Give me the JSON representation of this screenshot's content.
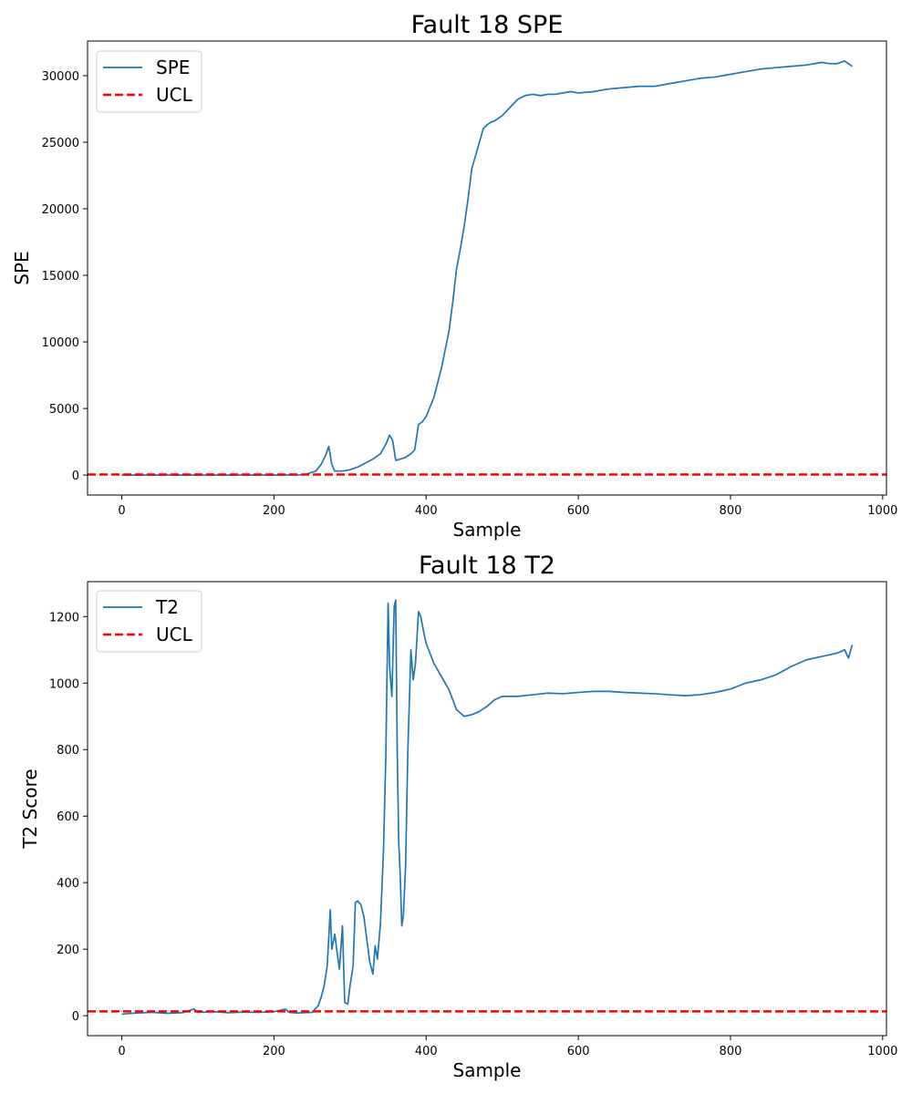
{
  "chart_data": [
    {
      "type": "line",
      "title": "Fault 18 SPE",
      "xlabel": "Sample",
      "ylabel": "SPE",
      "xlim": [
        -45,
        1005
      ],
      "ylim": [
        -1500,
        32600
      ],
      "xticks": [
        0,
        200,
        400,
        600,
        800,
        1000
      ],
      "yticks": [
        0,
        5000,
        10000,
        15000,
        20000,
        25000,
        30000
      ],
      "grid": false,
      "legend": "top-left",
      "series": [
        {
          "name": "SPE",
          "color": "#1f77b4",
          "style": "solid",
          "x": [
            0,
            50,
            100,
            150,
            200,
            240,
            255,
            262,
            268,
            272,
            276,
            280,
            290,
            300,
            310,
            320,
            330,
            340,
            347,
            352,
            356,
            360,
            366,
            372,
            380,
            385,
            390,
            395,
            400,
            410,
            420,
            425,
            430,
            435,
            440,
            445,
            450,
            455,
            460,
            465,
            470,
            475,
            480,
            485,
            490,
            500,
            510,
            520,
            530,
            540,
            550,
            560,
            570,
            580,
            590,
            600,
            620,
            640,
            660,
            680,
            700,
            720,
            740,
            760,
            780,
            800,
            820,
            840,
            860,
            880,
            900,
            920,
            930,
            940,
            950,
            960
          ],
          "values": [
            0,
            0,
            0,
            0,
            0,
            20,
            300,
            800,
            1500,
            2150,
            800,
            300,
            300,
            400,
            600,
            900,
            1200,
            1600,
            2300,
            3000,
            2600,
            1100,
            1200,
            1300,
            1600,
            1900,
            3800,
            4000,
            4400,
            5800,
            8000,
            9400,
            10800,
            13000,
            15500,
            17000,
            18700,
            20700,
            23000,
            24000,
            25000,
            26000,
            26300,
            26500,
            26600,
            27000,
            27600,
            28200,
            28500,
            28600,
            28500,
            28600,
            28600,
            28700,
            28800,
            28700,
            28800,
            29000,
            29100,
            29200,
            29200,
            29400,
            29600,
            29800,
            29900,
            30100,
            30300,
            30500,
            30600,
            30700,
            30800,
            31000,
            30900,
            30900,
            31100,
            30700
          ]
        },
        {
          "name": "UCL",
          "color": "#ff0000",
          "style": "dashed",
          "x": [
            -45,
            1005
          ],
          "values": [
            40,
            40
          ]
        }
      ]
    },
    {
      "type": "line",
      "title": "Fault 18 T2",
      "xlabel": "Sample",
      "ylabel": "T2 Score",
      "xlim": [
        -45,
        1005
      ],
      "ylim": [
        -60,
        1305
      ],
      "xticks": [
        0,
        200,
        400,
        600,
        800,
        1000
      ],
      "yticks": [
        0,
        200,
        400,
        600,
        800,
        1000,
        1200
      ],
      "grid": false,
      "legend": "top-left",
      "series": [
        {
          "name": "T2",
          "color": "#1f77b4",
          "style": "solid",
          "x": [
            0,
            20,
            40,
            60,
            80,
            95,
            100,
            120,
            140,
            160,
            180,
            200,
            215,
            220,
            230,
            250,
            258,
            262,
            266,
            270,
            274,
            276,
            280,
            283,
            286,
            290,
            293,
            297,
            300,
            304,
            307,
            310,
            314,
            318,
            322,
            326,
            330,
            333,
            336,
            340,
            344,
            347,
            350,
            352,
            355,
            358,
            360,
            362,
            364,
            366,
            368,
            370,
            373,
            376,
            380,
            383,
            386,
            390,
            393,
            397,
            400,
            410,
            420,
            430,
            440,
            450,
            460,
            470,
            480,
            490,
            500,
            520,
            540,
            560,
            580,
            600,
            620,
            640,
            660,
            680,
            700,
            720,
            740,
            760,
            780,
            800,
            820,
            840,
            860,
            880,
            900,
            920,
            940,
            950,
            955,
            960
          ],
          "values": [
            5,
            8,
            10,
            7,
            9,
            20,
            10,
            12,
            9,
            11,
            10,
            12,
            20,
            10,
            8,
            10,
            30,
            55,
            90,
            150,
            318,
            200,
            245,
            190,
            140,
            270,
            40,
            35,
            90,
            150,
            340,
            345,
            335,
            300,
            230,
            160,
            125,
            210,
            170,
            280,
            500,
            780,
            1240,
            1050,
            960,
            1230,
            1250,
            800,
            520,
            420,
            270,
            300,
            450,
            800,
            1100,
            1010,
            1060,
            1215,
            1200,
            1150,
            1120,
            1060,
            1020,
            980,
            920,
            900,
            905,
            915,
            930,
            950,
            960,
            960,
            965,
            970,
            968,
            972,
            975,
            975,
            972,
            970,
            968,
            965,
            962,
            965,
            972,
            982,
            1000,
            1010,
            1025,
            1050,
            1070,
            1080,
            1090,
            1100,
            1075,
            1115
          ]
        },
        {
          "name": "UCL",
          "color": "#ff0000",
          "style": "dashed",
          "x": [
            -45,
            1005
          ],
          "values": [
            13,
            13
          ]
        }
      ]
    }
  ]
}
